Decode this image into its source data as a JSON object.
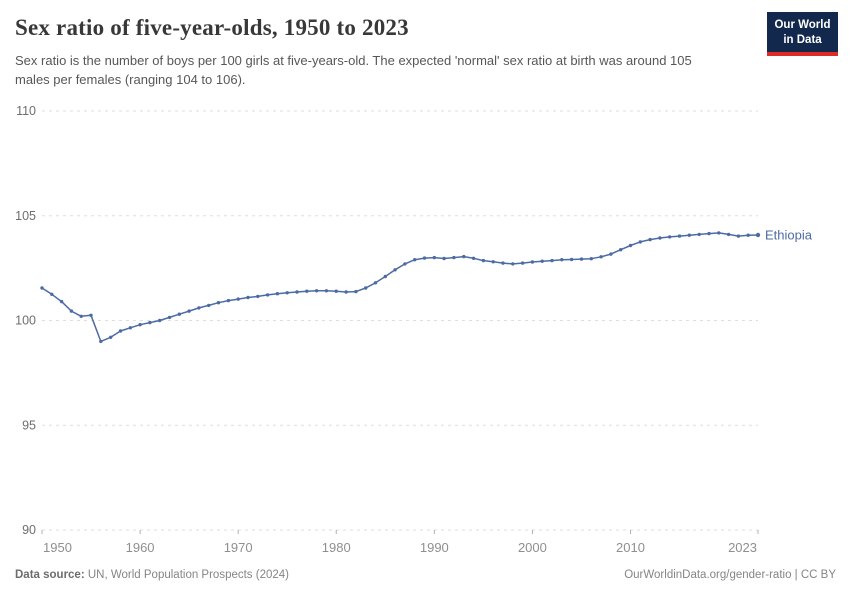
{
  "header": {
    "title": "Sex ratio of five-year-olds, 1950 to 2023",
    "subtitle": "Sex ratio is the number of boys per 100 girls at five-years-old. The expected 'normal' sex ratio at birth was around 105 males per females (ranging 104 to 106).",
    "logo": {
      "line1": "Our World",
      "line2": "in Data",
      "bg_color": "#12294d",
      "accent_color": "#dc2c27"
    }
  },
  "chart_data": {
    "type": "line",
    "title": "Sex ratio of five-year-olds, 1950 to 2023",
    "xlabel": "",
    "ylabel": "",
    "xlim": [
      1950,
      2023
    ],
    "ylim": [
      90,
      110
    ],
    "y_ticks": [
      90,
      95,
      100,
      105,
      110
    ],
    "x_ticks": [
      1950,
      1960,
      1970,
      1980,
      1990,
      2000,
      2010,
      2023
    ],
    "grid": "horizontal-dashed",
    "legend_position": "end-of-line-label",
    "colors": {
      "line": "#4C6BA5",
      "gridline": "#dedede",
      "tick": "#b0b0b0",
      "y_label": "#6e6e6e",
      "x_label": "#8f8f8f"
    },
    "series": [
      {
        "name": "Ethiopia",
        "x": [
          1950,
          1951,
          1952,
          1953,
          1954,
          1955,
          1956,
          1957,
          1958,
          1959,
          1960,
          1961,
          1962,
          1963,
          1964,
          1965,
          1966,
          1967,
          1968,
          1969,
          1970,
          1971,
          1972,
          1973,
          1974,
          1975,
          1976,
          1977,
          1978,
          1979,
          1980,
          1981,
          1982,
          1983,
          1984,
          1985,
          1986,
          1987,
          1988,
          1989,
          1990,
          1991,
          1992,
          1993,
          1994,
          1995,
          1996,
          1997,
          1998,
          1999,
          2000,
          2001,
          2002,
          2003,
          2004,
          2005,
          2006,
          2007,
          2008,
          2009,
          2010,
          2011,
          2012,
          2013,
          2014,
          2015,
          2016,
          2017,
          2018,
          2019,
          2020,
          2021,
          2022,
          2023
        ],
        "values": [
          101.55,
          101.25,
          100.9,
          100.45,
          100.2,
          100.25,
          99.0,
          99.2,
          99.5,
          99.65,
          99.8,
          99.9,
          100.0,
          100.15,
          100.3,
          100.45,
          100.6,
          100.72,
          100.85,
          100.95,
          101.02,
          101.1,
          101.15,
          101.22,
          101.28,
          101.32,
          101.36,
          101.4,
          101.42,
          101.42,
          101.4,
          101.36,
          101.38,
          101.55,
          101.8,
          102.1,
          102.42,
          102.7,
          102.9,
          102.98,
          103.0,
          102.96,
          103.0,
          103.05,
          102.97,
          102.86,
          102.8,
          102.74,
          102.7,
          102.74,
          102.79,
          102.83,
          102.86,
          102.9,
          102.91,
          102.93,
          102.95,
          103.04,
          103.17,
          103.38,
          103.58,
          103.75,
          103.86,
          103.94,
          103.99,
          104.03,
          104.07,
          104.11,
          104.15,
          104.18,
          104.11,
          104.03,
          104.07,
          104.08
        ]
      }
    ]
  },
  "footer": {
    "source_label": "Data source:",
    "source_text": " UN, World Population Prospects (2024)",
    "credit": "OurWorldinData.org/gender-ratio | CC BY"
  }
}
